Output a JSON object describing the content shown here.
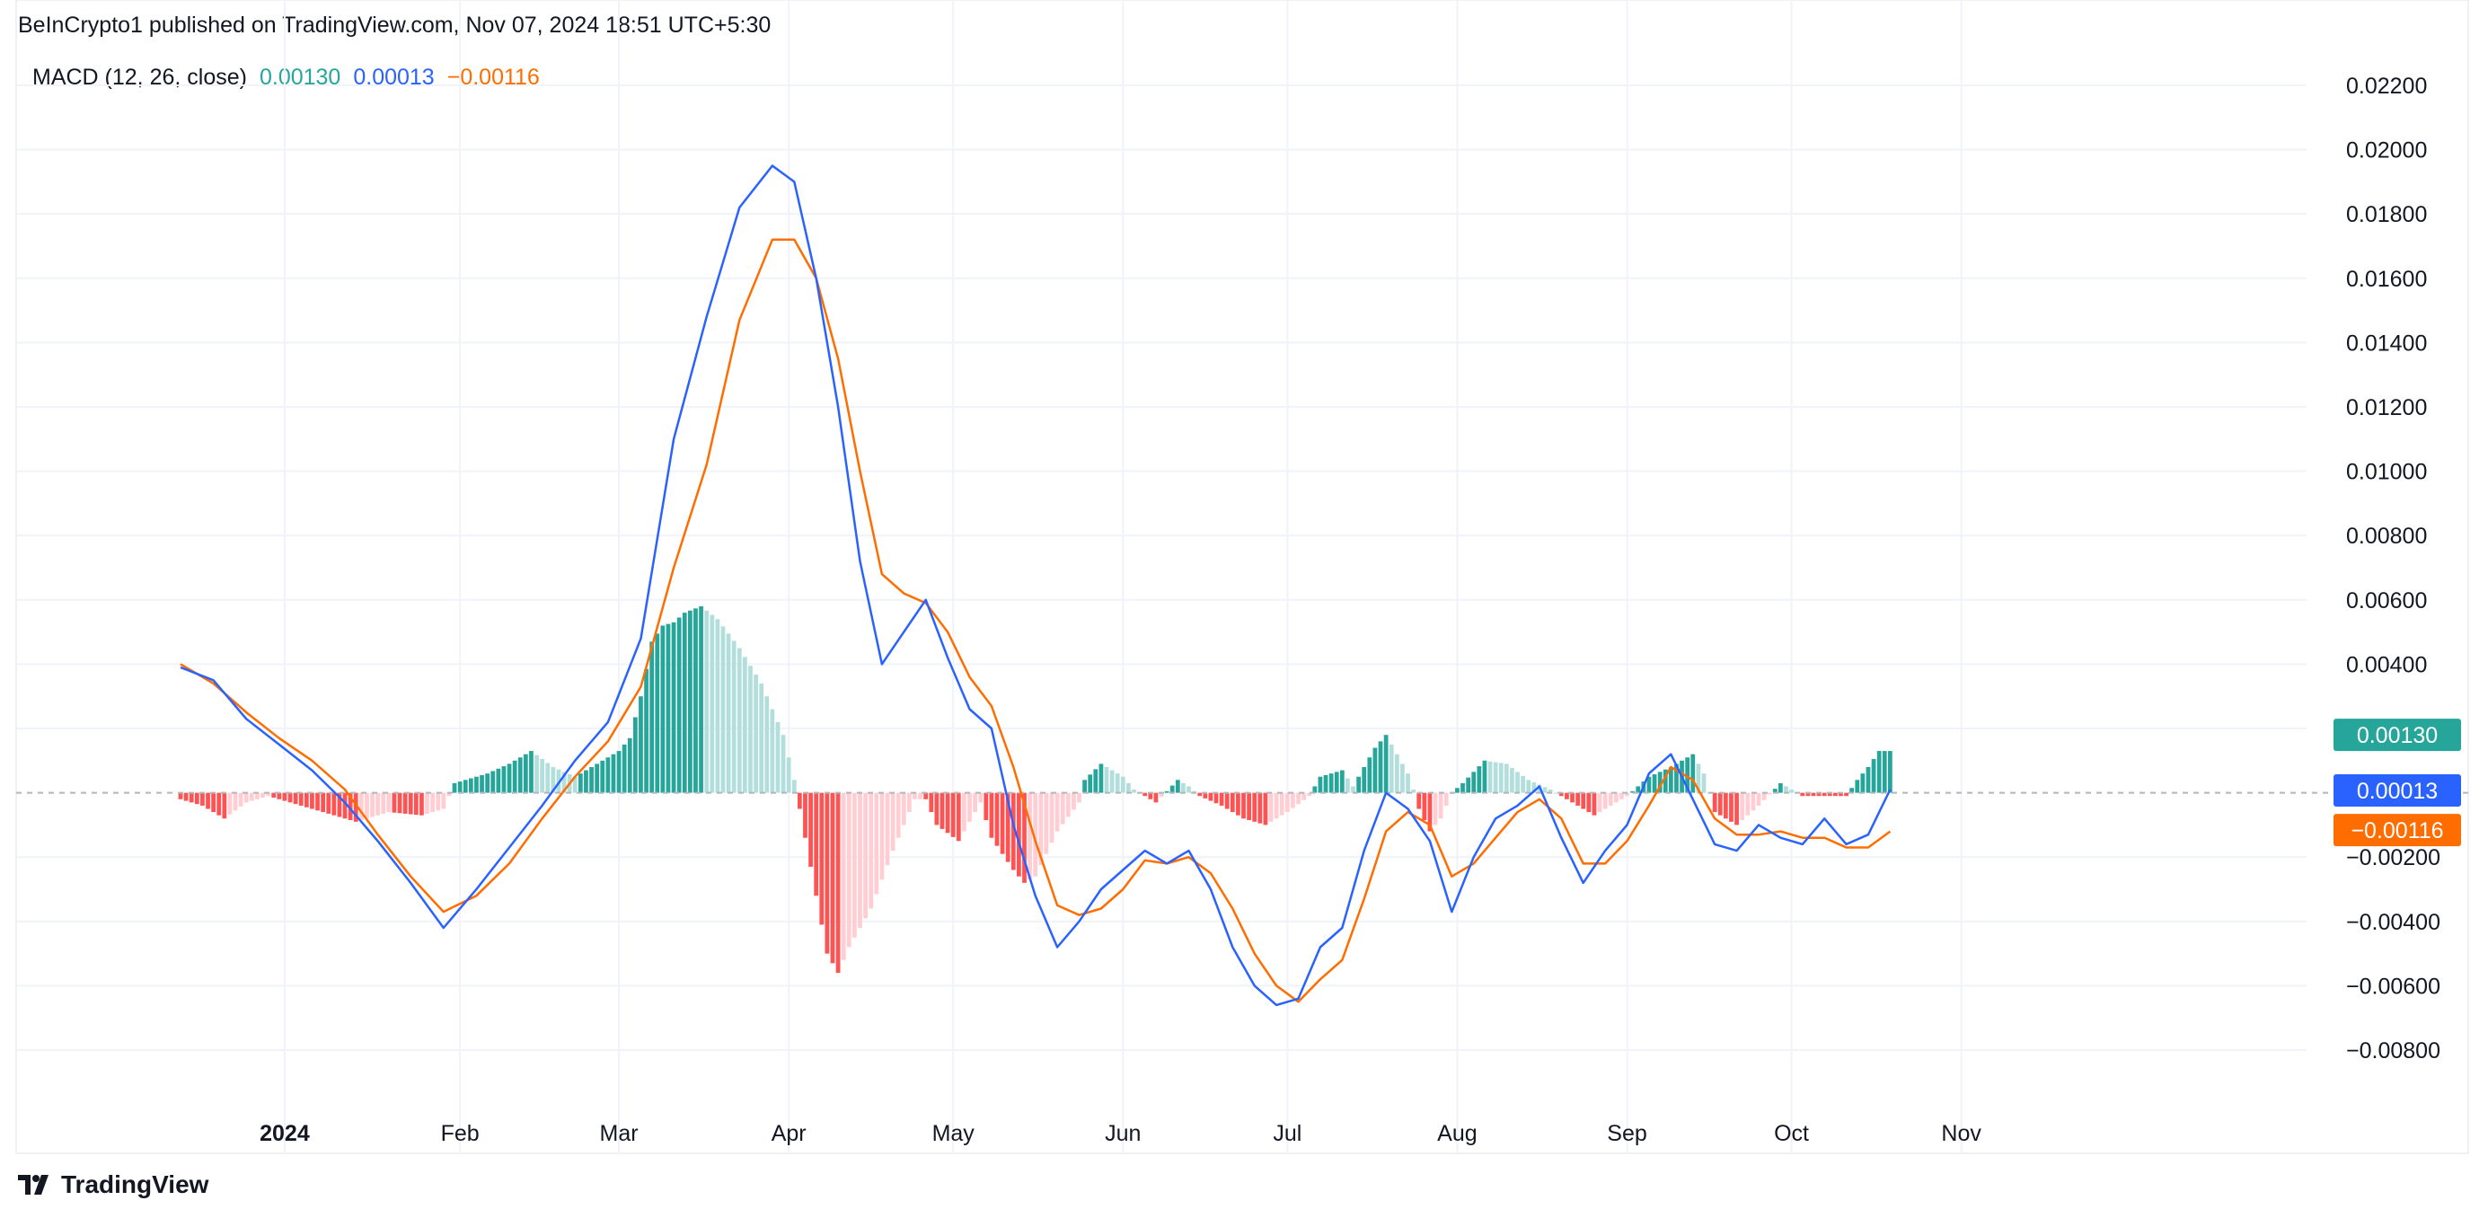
{
  "header": {
    "published_line": "BeInCrypto1 published on TradingView.com, Nov 07, 2024 18:51 UTC+5:30"
  },
  "brand": {
    "name": "TradingView",
    "icon": "tradingview-logo-icon"
  },
  "legend": {
    "indicator": "MACD (12, 26, close)",
    "histogram_value": "0.00130",
    "macd_value": "0.00013",
    "signal_value": "−0.00116"
  },
  "colors": {
    "macd": "#2962FF",
    "signal": "#FF6D00",
    "hist_pos_strong": "#26A69A",
    "hist_pos_weak": "#B2DFDB",
    "hist_neg_strong": "#FF5252",
    "hist_neg_weak": "#FFCDD2",
    "grid": "#F0F3FA",
    "axis_text": "#131722"
  },
  "chart_data": {
    "type": "line",
    "x_unit": "day_of_year_2024",
    "xlim": [
      -50,
      368
    ],
    "ylim": [
      -0.0092,
      0.0232
    ],
    "x_ticks": [
      {
        "x": -1,
        "label": "2024",
        "bold": true
      },
      {
        "x": 31,
        "label": "Feb"
      },
      {
        "x": 60,
        "label": "Mar"
      },
      {
        "x": 91,
        "label": "Apr"
      },
      {
        "x": 121,
        "label": "May"
      },
      {
        "x": 152,
        "label": "Jun"
      },
      {
        "x": 182,
        "label": "Jul"
      },
      {
        "x": 213,
        "label": "Aug"
      },
      {
        "x": 244,
        "label": "Sep"
      },
      {
        "x": 274,
        "label": "Oct"
      },
      {
        "x": 305,
        "label": "Nov"
      }
    ],
    "y_ticks": [
      0.022,
      0.02,
      0.018,
      0.016,
      0.014,
      0.012,
      0.01,
      0.008,
      0.006,
      0.004,
      0.002,
      -0.002,
      -0.004,
      -0.006,
      -0.008
    ],
    "y_tick_labels": [
      "0.02200",
      "0.02000",
      "0.01800",
      "0.01600",
      "0.01400",
      "0.01200",
      "0.01000",
      "0.00800",
      "0.00600",
      "0.00400",
      "0.00200",
      "−0.00200",
      "−0.00400",
      "−0.00600",
      "−0.00800"
    ],
    "series": [
      {
        "key": "macd",
        "color": "#2962FF",
        "points": [
          [
            -20,
            0.0039
          ],
          [
            -14,
            0.0035
          ],
          [
            -8,
            0.0023
          ],
          [
            -2,
            0.0015
          ],
          [
            4,
            0.0007
          ],
          [
            10,
            -0.0003
          ],
          [
            16,
            -0.0015
          ],
          [
            22,
            -0.0028
          ],
          [
            28,
            -0.0042
          ],
          [
            34,
            -0.003
          ],
          [
            40,
            -0.0017
          ],
          [
            46,
            -0.0004
          ],
          [
            52,
            0.001
          ],
          [
            58,
            0.0022
          ],
          [
            64,
            0.0048
          ],
          [
            70,
            0.011
          ],
          [
            76,
            0.0148
          ],
          [
            82,
            0.0182
          ],
          [
            88,
            0.0195
          ],
          [
            92,
            0.019
          ],
          [
            96,
            0.016
          ],
          [
            100,
            0.012
          ],
          [
            104,
            0.0072
          ],
          [
            108,
            0.004
          ],
          [
            112,
            0.005
          ],
          [
            116,
            0.006
          ],
          [
            120,
            0.0042
          ],
          [
            124,
            0.0026
          ],
          [
            128,
            0.002
          ],
          [
            132,
            -0.001
          ],
          [
            136,
            -0.0032
          ],
          [
            140,
            -0.0048
          ],
          [
            144,
            -0.004
          ],
          [
            148,
            -0.003
          ],
          [
            152,
            -0.0024
          ],
          [
            156,
            -0.0018
          ],
          [
            160,
            -0.0022
          ],
          [
            164,
            -0.0018
          ],
          [
            168,
            -0.003
          ],
          [
            172,
            -0.0048
          ],
          [
            176,
            -0.006
          ],
          [
            180,
            -0.0066
          ],
          [
            184,
            -0.0064
          ],
          [
            188,
            -0.0048
          ],
          [
            192,
            -0.0042
          ],
          [
            196,
            -0.0018
          ],
          [
            200,
            0.0
          ],
          [
            204,
            -0.0005
          ],
          [
            208,
            -0.0015
          ],
          [
            212,
            -0.0037
          ],
          [
            216,
            -0.002
          ],
          [
            220,
            -0.0008
          ],
          [
            224,
            -0.0004
          ],
          [
            228,
            0.0002
          ],
          [
            232,
            -0.0014
          ],
          [
            236,
            -0.0028
          ],
          [
            240,
            -0.0018
          ],
          [
            244,
            -0.001
          ],
          [
            248,
            0.0006
          ],
          [
            252,
            0.0012
          ],
          [
            256,
            -0.0002
          ],
          [
            260,
            -0.0016
          ],
          [
            264,
            -0.0018
          ],
          [
            268,
            -0.001
          ],
          [
            272,
            -0.0014
          ],
          [
            276,
            -0.0016
          ],
          [
            280,
            -0.0008
          ],
          [
            284,
            -0.0016
          ],
          [
            288,
            -0.0013
          ],
          [
            292,
            0.0001
          ]
        ]
      },
      {
        "key": "signal",
        "color": "#FF6D00",
        "points": [
          [
            -20,
            0.004
          ],
          [
            -14,
            0.0034
          ],
          [
            -8,
            0.0025
          ],
          [
            -2,
            0.0017
          ],
          [
            4,
            0.001
          ],
          [
            10,
            0.0001
          ],
          [
            16,
            -0.0013
          ],
          [
            22,
            -0.0026
          ],
          [
            28,
            -0.0037
          ],
          [
            34,
            -0.0032
          ],
          [
            40,
            -0.0022
          ],
          [
            46,
            -0.0008
          ],
          [
            52,
            0.0005
          ],
          [
            58,
            0.0016
          ],
          [
            64,
            0.0033
          ],
          [
            70,
            0.007
          ],
          [
            76,
            0.0102
          ],
          [
            82,
            0.0147
          ],
          [
            88,
            0.0172
          ],
          [
            92,
            0.0172
          ],
          [
            96,
            0.016
          ],
          [
            100,
            0.0135
          ],
          [
            104,
            0.01
          ],
          [
            108,
            0.0068
          ],
          [
            112,
            0.0062
          ],
          [
            116,
            0.0059
          ],
          [
            120,
            0.005
          ],
          [
            124,
            0.0036
          ],
          [
            128,
            0.0027
          ],
          [
            132,
            0.0008
          ],
          [
            136,
            -0.0015
          ],
          [
            140,
            -0.0035
          ],
          [
            144,
            -0.0038
          ],
          [
            148,
            -0.0036
          ],
          [
            152,
            -0.003
          ],
          [
            156,
            -0.0021
          ],
          [
            160,
            -0.0022
          ],
          [
            164,
            -0.002
          ],
          [
            168,
            -0.0025
          ],
          [
            172,
            -0.0036
          ],
          [
            176,
            -0.005
          ],
          [
            180,
            -0.006
          ],
          [
            184,
            -0.0065
          ],
          [
            188,
            -0.0058
          ],
          [
            192,
            -0.0052
          ],
          [
            196,
            -0.0033
          ],
          [
            200,
            -0.0012
          ],
          [
            204,
            -0.0006
          ],
          [
            208,
            -0.001
          ],
          [
            212,
            -0.0026
          ],
          [
            216,
            -0.0022
          ],
          [
            220,
            -0.0014
          ],
          [
            224,
            -0.0006
          ],
          [
            228,
            -0.0002
          ],
          [
            232,
            -0.0008
          ],
          [
            236,
            -0.0022
          ],
          [
            240,
            -0.0022
          ],
          [
            244,
            -0.0015
          ],
          [
            248,
            -0.0004
          ],
          [
            252,
            0.0008
          ],
          [
            256,
            0.0004
          ],
          [
            260,
            -0.0008
          ],
          [
            264,
            -0.0013
          ],
          [
            268,
            -0.0013
          ],
          [
            272,
            -0.0012
          ],
          [
            276,
            -0.0014
          ],
          [
            280,
            -0.0014
          ],
          [
            284,
            -0.0017
          ],
          [
            288,
            -0.0017
          ],
          [
            292,
            -0.0012
          ]
        ]
      }
    ],
    "histogram": {
      "bar_step": 1,
      "anchors": [
        [
          -20,
          -0.0002
        ],
        [
          -16,
          -0.0004
        ],
        [
          -12,
          -0.0008
        ],
        [
          -8,
          -0.0003
        ],
        [
          -4,
          -0.0001
        ],
        [
          0,
          -0.0003
        ],
        [
          6,
          -0.0006
        ],
        [
          12,
          -0.0009
        ],
        [
          18,
          -0.0006
        ],
        [
          24,
          -0.0007
        ],
        [
          28,
          -0.0005
        ],
        [
          30,
          0.0003
        ],
        [
          36,
          0.0006
        ],
        [
          40,
          0.0009
        ],
        [
          44,
          0.0013
        ],
        [
          48,
          0.0008
        ],
        [
          52,
          0.0005
        ],
        [
          56,
          0.0009
        ],
        [
          60,
          0.0013
        ],
        [
          62,
          0.0017
        ],
        [
          64,
          0.003
        ],
        [
          66,
          0.0047
        ],
        [
          68,
          0.0052
        ],
        [
          70,
          0.0053
        ],
        [
          72,
          0.0056
        ],
        [
          75,
          0.0058
        ],
        [
          78,
          0.0054
        ],
        [
          82,
          0.0045
        ],
        [
          86,
          0.0034
        ],
        [
          90,
          0.0018
        ],
        [
          92,
          0.0004
        ],
        [
          94,
          -0.0014
        ],
        [
          96,
          -0.0032
        ],
        [
          98,
          -0.005
        ],
        [
          100,
          -0.0056
        ],
        [
          102,
          -0.0048
        ],
        [
          106,
          -0.0036
        ],
        [
          110,
          -0.0018
        ],
        [
          114,
          -0.0002
        ],
        [
          116,
          -0.0002
        ],
        [
          118,
          -0.001
        ],
        [
          122,
          -0.0015
        ],
        [
          126,
          -0.0003
        ],
        [
          128,
          -0.0014
        ],
        [
          132,
          -0.0024
        ],
        [
          134,
          -0.0028
        ],
        [
          136,
          -0.0026
        ],
        [
          140,
          -0.0012
        ],
        [
          144,
          -0.0003
        ],
        [
          145,
          0.0004
        ],
        [
          148,
          0.0009
        ],
        [
          152,
          0.0005
        ],
        [
          154,
          0.0001
        ],
        [
          158,
          -0.0003
        ],
        [
          162,
          0.0004
        ],
        [
          164,
          0.0002
        ],
        [
          166,
          -0.0001
        ],
        [
          170,
          -0.0004
        ],
        [
          174,
          -0.0008
        ],
        [
          178,
          -0.001
        ],
        [
          182,
          -0.0006
        ],
        [
          186,
          -0.0001
        ],
        [
          188,
          0.0005
        ],
        [
          192,
          0.0007
        ],
        [
          194,
          0.0002
        ],
        [
          196,
          0.0008
        ],
        [
          198,
          0.0014
        ],
        [
          200,
          0.0018
        ],
        [
          202,
          0.0012
        ],
        [
          204,
          0.0006
        ],
        [
          205,
          0.0001
        ],
        [
          206,
          -0.0005
        ],
        [
          208,
          -0.0012
        ],
        [
          210,
          -0.0008
        ],
        [
          212,
          0.0
        ],
        [
          214,
          0.0003
        ],
        [
          218,
          0.001
        ],
        [
          222,
          0.0009
        ],
        [
          226,
          0.0004
        ],
        [
          230,
          0.0001
        ],
        [
          234,
          -0.0003
        ],
        [
          238,
          -0.0007
        ],
        [
          242,
          -0.0003
        ],
        [
          244,
          -0.0001
        ],
        [
          248,
          0.0005
        ],
        [
          252,
          0.0008
        ],
        [
          256,
          0.0012
        ],
        [
          258,
          0.0006
        ],
        [
          260,
          -0.0006
        ],
        [
          264,
          -0.001
        ],
        [
          268,
          -0.0004
        ],
        [
          272,
          0.0003
        ],
        [
          276,
          -0.0001
        ],
        [
          280,
          -0.0001
        ],
        [
          284,
          -0.0001
        ],
        [
          286,
          0.0004
        ],
        [
          288,
          0.0008
        ],
        [
          290,
          0.0013
        ],
        [
          292,
          0.0013
        ]
      ]
    },
    "last_labels": [
      {
        "key": "hist",
        "value": 0.0013,
        "text": "0.00130",
        "color": "#26A69A"
      },
      {
        "key": "macd",
        "value": 0.00013,
        "text": "0.00013",
        "color": "#2962FF"
      },
      {
        "key": "signal",
        "value": -0.00116,
        "text": "−0.00116",
        "color": "#FF6D00"
      }
    ],
    "zero_line": true,
    "grid": true
  }
}
